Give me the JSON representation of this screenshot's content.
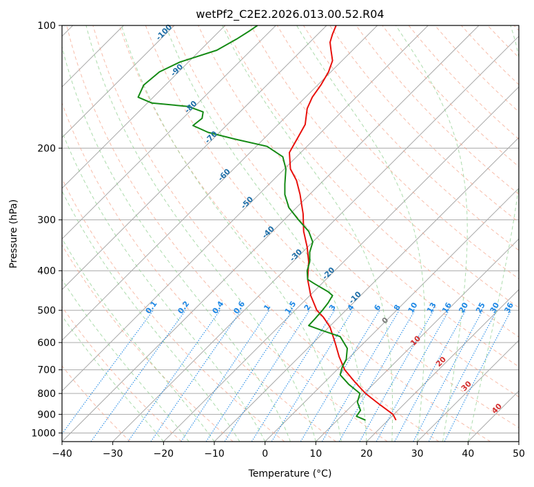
{
  "chart_data": {
    "type": "line",
    "title": "wetPf2_C2E2.2026.013.00.52.R04",
    "xlabel": "Temperature (°C)",
    "ylabel": "Pressure (hPa)",
    "xlim": [
      -40,
      50
    ],
    "ylim": [
      1050,
      100
    ],
    "y_scale": "log",
    "grid": true,
    "xticks": [
      "−40",
      "−30",
      "−20",
      "−10",
      "0",
      "10",
      "20",
      "30",
      "40",
      "50"
    ],
    "yticks": [
      {
        "p": 100,
        "label": "100"
      },
      {
        "p": 200,
        "label": "200"
      },
      {
        "p": 300,
        "label": "300"
      },
      {
        "p": 400,
        "label": "400"
      },
      {
        "p": 500,
        "label": "500"
      },
      {
        "p": 600,
        "label": "600"
      },
      {
        "p": 700,
        "label": "700"
      },
      {
        "p": 800,
        "label": "800"
      },
      {
        "p": 900,
        "label": "900"
      },
      {
        "p": 1000,
        "label": "1000"
      }
    ],
    "series": [
      {
        "color": "#e8100c",
        "points": [
          [
            25.8,
            930
          ],
          [
            25.2,
            900
          ],
          [
            22.5,
            850
          ],
          [
            19.8,
            800
          ],
          [
            17.7,
            750
          ],
          [
            15.7,
            700
          ],
          [
            14.6,
            650
          ],
          [
            13.8,
            600
          ],
          [
            12.8,
            550
          ],
          [
            11.5,
            520
          ],
          [
            10.2,
            500
          ],
          [
            9.0,
            460
          ],
          [
            8.4,
            420
          ],
          [
            8.6,
            380
          ],
          [
            8.3,
            350
          ],
          [
            7.6,
            320
          ],
          [
            7.5,
            290
          ],
          [
            6.9,
            260
          ],
          [
            6.2,
            240
          ],
          [
            5.0,
            225
          ],
          [
            4.8,
            205
          ],
          [
            6.3,
            190
          ],
          [
            7.9,
            175
          ],
          [
            8.3,
            160
          ],
          [
            9.3,
            150
          ],
          [
            11.0,
            140
          ],
          [
            12.5,
            130
          ],
          [
            13.3,
            122
          ],
          [
            13.0,
            115
          ],
          [
            12.8,
            110
          ],
          [
            13.3,
            105
          ],
          [
            14.0,
            100
          ]
        ]
      },
      {
        "color": "#148a14",
        "points": [
          [
            19.8,
            930
          ],
          [
            18.0,
            910
          ],
          [
            18.8,
            880
          ],
          [
            18.2,
            840
          ],
          [
            18.7,
            800
          ],
          [
            16.5,
            760
          ],
          [
            14.8,
            720
          ],
          [
            15.2,
            690
          ],
          [
            16.0,
            660
          ],
          [
            16.2,
            620
          ],
          [
            14.8,
            580
          ],
          [
            11.2,
            560
          ],
          [
            8.6,
            545
          ],
          [
            9.8,
            525
          ],
          [
            11.3,
            500
          ],
          [
            12.4,
            480
          ],
          [
            13.3,
            460
          ],
          [
            12.4,
            450
          ],
          [
            9.7,
            430
          ],
          [
            8.4,
            420
          ],
          [
            8.3,
            400
          ],
          [
            8.8,
            380
          ],
          [
            8.8,
            360
          ],
          [
            9.4,
            340
          ],
          [
            8.6,
            320
          ],
          [
            6.6,
            300
          ],
          [
            4.7,
            280
          ],
          [
            3.9,
            260
          ],
          [
            3.9,
            245
          ],
          [
            4.1,
            225
          ],
          [
            3.5,
            210
          ],
          [
            0.4,
            198
          ],
          [
            -6.0,
            190
          ],
          [
            -11.2,
            183
          ],
          [
            -14.2,
            176
          ],
          [
            -12.4,
            169
          ],
          [
            -12.2,
            163
          ],
          [
            -15.2,
            158
          ],
          [
            -22.3,
            155
          ],
          [
            -25.0,
            150
          ],
          [
            -23.9,
            140
          ],
          [
            -20.8,
            130
          ],
          [
            -16.8,
            123
          ],
          [
            -9.5,
            115
          ],
          [
            -5.6,
            108
          ],
          [
            -3.0,
            103
          ],
          [
            -1.5,
            100
          ]
        ]
      }
    ],
    "mixing_ratio_labels": [
      "0.1",
      "0.2",
      "0.4",
      "0.6",
      "1",
      "1.5",
      "2",
      "3",
      "4",
      "6",
      "8",
      "10",
      "13",
      "16",
      "20",
      "25",
      "30",
      "36"
    ],
    "saturated_adiabat_labels": [
      "-100",
      "-90",
      "-80",
      "-70",
      "-60",
      "-50",
      "-40",
      "-30",
      "-20",
      "-10"
    ],
    "warm_adiabat_labels": [
      "0",
      "10",
      "20",
      "30",
      "40"
    ],
    "colors": {
      "temperature": "#e8100c",
      "dewpoint": "#148a14",
      "isotherm": "#a8a8a8",
      "dry_adiabat": "#f4a58c",
      "moist_adiabat": "#8fcf8f",
      "mixing_ratio": "#1e88e5",
      "cold_label": "#1f6fa8",
      "warm_label": "#d32f2f"
    }
  }
}
